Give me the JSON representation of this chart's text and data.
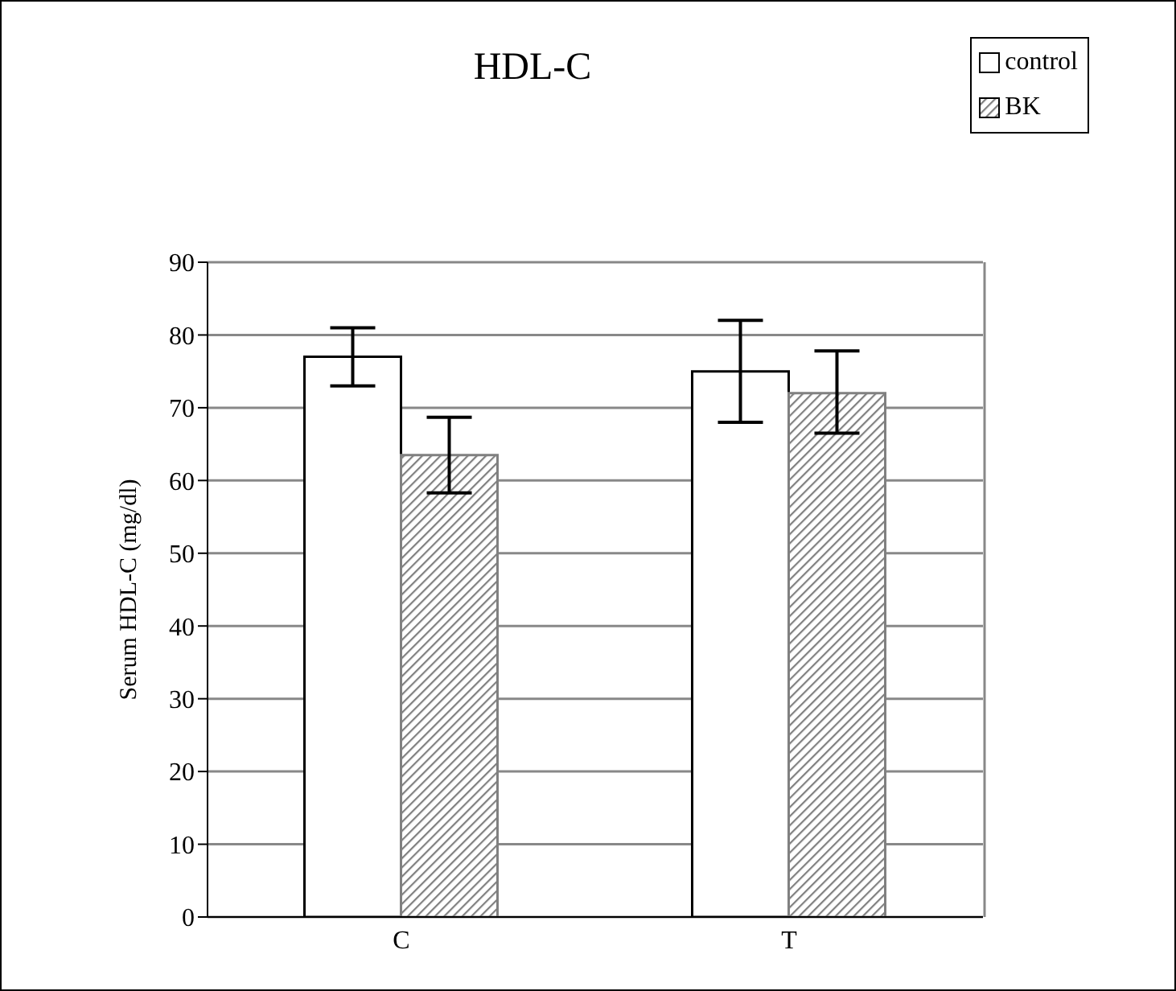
{
  "chart_data": {
    "type": "bar",
    "title": "HDL-C",
    "ylabel": "Serum HDL-C (mg/dl)",
    "categories": [
      "C",
      "T"
    ],
    "series": [
      {
        "name": "control",
        "color": "#ffffff",
        "values": [
          77,
          75
        ],
        "errors": [
          [
            73,
            81
          ],
          [
            68,
            82
          ]
        ]
      },
      {
        "name": "BK",
        "color": "#808080",
        "values": [
          63.5,
          72
        ],
        "errors": [
          [
            58.3,
            68.7
          ],
          [
            66.5,
            77.8
          ]
        ]
      }
    ],
    "ylim": [
      0,
      90
    ],
    "yticks": [
      0,
      10,
      20,
      30,
      40,
      50,
      60,
      70,
      80,
      90
    ],
    "grid": "y",
    "legend": "top right"
  }
}
